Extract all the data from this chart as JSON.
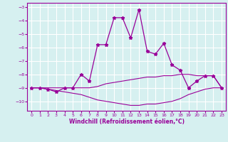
{
  "xlabel": "Windchill (Refroidissement éolien,°C)",
  "background_color": "#d6f0f0",
  "grid_color": "#ffffff",
  "line_color": "#990099",
  "xlim": [
    -0.5,
    23.5
  ],
  "ylim": [
    -10.7,
    -2.7
  ],
  "yticks": [
    -10,
    -9,
    -8,
    -7,
    -6,
    -5,
    -4,
    -3
  ],
  "xticks": [
    0,
    1,
    2,
    3,
    4,
    5,
    6,
    7,
    8,
    9,
    10,
    11,
    12,
    13,
    14,
    15,
    16,
    17,
    18,
    19,
    20,
    21,
    22,
    23
  ],
  "main_x": [
    0,
    1,
    2,
    3,
    4,
    5,
    6,
    7,
    8,
    9,
    10,
    11,
    12,
    13,
    14,
    15,
    16,
    17,
    18,
    19,
    20,
    21,
    22,
    23
  ],
  "main_y": [
    -9.0,
    -9.0,
    -9.1,
    -9.3,
    -9.0,
    -9.0,
    -8.0,
    -8.5,
    -5.8,
    -5.8,
    -3.8,
    -3.8,
    -5.3,
    -3.2,
    -6.3,
    -6.5,
    -5.7,
    -7.3,
    -7.7,
    -9.0,
    -8.5,
    -8.1,
    -8.1,
    -9.0
  ],
  "upper_band_x": [
    0,
    1,
    2,
    3,
    4,
    5,
    6,
    7,
    8,
    9,
    10,
    11,
    12,
    13,
    14,
    15,
    16,
    17,
    18,
    19,
    20,
    21,
    22,
    23
  ],
  "upper_band_y": [
    -9.0,
    -9.0,
    -9.0,
    -9.0,
    -9.0,
    -9.0,
    -9.0,
    -9.0,
    -8.9,
    -8.7,
    -8.6,
    -8.5,
    -8.4,
    -8.3,
    -8.2,
    -8.2,
    -8.1,
    -8.1,
    -8.0,
    -8.0,
    -8.1,
    -8.1,
    -8.1,
    -9.0
  ],
  "lower_band_x": [
    0,
    1,
    2,
    3,
    4,
    5,
    6,
    7,
    8,
    9,
    10,
    11,
    12,
    13,
    14,
    15,
    16,
    17,
    18,
    19,
    20,
    21,
    22,
    23
  ],
  "lower_band_y": [
    -9.0,
    -9.0,
    -9.1,
    -9.2,
    -9.3,
    -9.4,
    -9.5,
    -9.7,
    -9.9,
    -10.0,
    -10.1,
    -10.2,
    -10.3,
    -10.3,
    -10.2,
    -10.2,
    -10.1,
    -10.0,
    -9.8,
    -9.5,
    -9.3,
    -9.1,
    -9.0,
    -9.0
  ]
}
